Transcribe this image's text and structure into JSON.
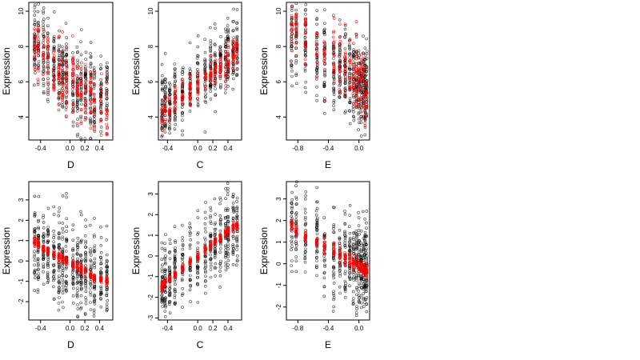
{
  "figure": {
    "point_color": "#000000",
    "highlight_color": "#ff0000"
  },
  "chart_data": [
    {
      "type": "scatter",
      "panel": "top-left",
      "xlabel": "D",
      "ylabel": "Expression",
      "xlim": [
        -0.56,
        0.58
      ],
      "ylim": [
        2.7,
        10.5
      ],
      "xticks": [
        -0.4,
        0.0,
        0.2,
        0.4
      ],
      "xtick_labels": [
        "-0.4",
        "0.0",
        "0.2",
        "0.4"
      ],
      "yticks": [
        4,
        6,
        8,
        10
      ],
      "ytick_labels": [
        "4",
        "6",
        "8",
        "10"
      ],
      "x_columns": [
        -0.48,
        -0.43,
        -0.36,
        -0.3,
        -0.22,
        -0.15,
        -0.1,
        -0.05,
        0.04,
        0.1,
        0.15,
        0.21,
        0.28,
        0.33,
        0.42,
        0.5
      ],
      "trend": {
        "mean": [
          8.1,
          7.8,
          7.5,
          7.4,
          7.0,
          6.6,
          6.4,
          6.3,
          6.1,
          5.8,
          5.7,
          5.5,
          5.3,
          5.2,
          5.1,
          5.0
        ],
        "spread": 1.4
      },
      "highlight": {
        "mean": [
          8.3,
          8.0,
          7.5,
          7.2,
          6.8,
          6.4,
          6.2,
          6.0,
          6.4,
          5.8,
          5.6,
          5.0,
          5.2,
          4.8,
          4.5,
          4.3
        ],
        "spread": 1.1
      }
    },
    {
      "type": "scatter",
      "panel": "top-center",
      "xlabel": "C",
      "ylabel": "Expression",
      "xlim": [
        -0.52,
        0.58
      ],
      "ylim": [
        2.7,
        10.5
      ],
      "xticks": [
        -0.4,
        0.0,
        0.2,
        0.4
      ],
      "xtick_labels": [
        "-0.4",
        "0.0",
        "0.2",
        "0.4"
      ],
      "yticks": [
        4,
        6,
        8,
        10
      ],
      "ytick_labels": [
        "4",
        "6",
        "8",
        "10"
      ],
      "x_columns": [
        -0.47,
        -0.43,
        -0.37,
        -0.3,
        -0.2,
        -0.1,
        0.0,
        0.1,
        0.17,
        0.23,
        0.3,
        0.37,
        0.4,
        0.47,
        0.52
      ],
      "trend": {
        "mean": [
          4.3,
          4.6,
          4.9,
          5.2,
          5.5,
          5.8,
          6.1,
          6.4,
          6.6,
          6.9,
          7.1,
          7.3,
          7.4,
          7.6,
          7.7
        ],
        "spread": 1.2
      },
      "highlight": {
        "mean": [
          4.0,
          4.4,
          4.5,
          5.0,
          5.4,
          5.7,
          5.9,
          6.2,
          6.5,
          6.6,
          6.8,
          7.0,
          7.2,
          7.5,
          7.7
        ],
        "spread": 0.5
      }
    },
    {
      "type": "scatter",
      "panel": "top-right",
      "xlabel": "E",
      "ylabel": "Expression",
      "xlim": [
        -0.95,
        0.14
      ],
      "ylim": [
        2.7,
        10.5
      ],
      "xticks": [
        -0.8,
        -0.4,
        0.0
      ],
      "xtick_labels": [
        "-0.8",
        "-0.4",
        "0.0"
      ],
      "yticks": [
        4,
        6,
        8,
        10
      ],
      "ytick_labels": [
        "4",
        "6",
        "8",
        "10"
      ],
      "x_columns": [
        -0.88,
        -0.82,
        -0.7,
        -0.55,
        -0.45,
        -0.33,
        -0.25,
        -0.18,
        -0.12,
        -0.07,
        -0.03,
        0.0,
        0.03,
        0.06,
        0.08,
        0.1
      ],
      "trend": {
        "mean": [
          8.8,
          8.5,
          8.0,
          7.5,
          7.1,
          6.9,
          6.7,
          6.5,
          6.3,
          6.2,
          6.0,
          5.9,
          5.8,
          5.7,
          5.6,
          5.6
        ],
        "spread": 1.5
      },
      "highlight": {
        "mean": [
          9.2,
          8.9,
          8.4,
          8.0,
          7.6,
          7.4,
          7.0,
          6.8,
          6.5,
          6.3,
          6.1,
          6.0,
          6.0,
          5.8,
          5.5,
          5.2
        ],
        "spread": 1.3
      }
    },
    {
      "type": "scatter",
      "panel": "bottom-left",
      "xlabel": "D",
      "ylabel": "Expression",
      "xlim": [
        -0.56,
        0.58
      ],
      "ylim": [
        -2.9,
        3.9
      ],
      "xticks": [
        -0.4,
        0.0,
        0.2,
        0.4
      ],
      "xtick_labels": [
        "-0.4",
        "0.0",
        "0.2",
        "0.4"
      ],
      "yticks": [
        -2,
        -1,
        0,
        1,
        2,
        3
      ],
      "ytick_labels": [
        "-2",
        "-1",
        "0",
        "1",
        "2",
        "3"
      ],
      "x_columns": [
        -0.48,
        -0.43,
        -0.36,
        -0.3,
        -0.22,
        -0.15,
        -0.1,
        -0.05,
        0.04,
        0.1,
        0.15,
        0.21,
        0.28,
        0.33,
        0.42,
        0.5
      ],
      "trend": {
        "mean": [
          1.0,
          0.8,
          0.6,
          0.5,
          0.3,
          0.2,
          0.1,
          0.0,
          -0.2,
          -0.3,
          -0.4,
          -0.5,
          -0.7,
          -0.8,
          -0.9,
          -1.0
        ],
        "spread": 1.3
      },
      "highlight": {
        "mean": [
          1.0,
          0.8,
          0.6,
          0.5,
          0.3,
          0.2,
          0.1,
          0.0,
          -0.2,
          -0.3,
          -0.4,
          -0.5,
          -0.7,
          -0.8,
          -0.9,
          -1.0
        ],
        "spread": 0.12
      }
    },
    {
      "type": "scatter",
      "panel": "bottom-center",
      "xlabel": "C",
      "ylabel": "Expression",
      "xlim": [
        -0.52,
        0.58
      ],
      "ylim": [
        -3.1,
        3.6
      ],
      "xticks": [
        -0.4,
        0.0,
        0.2,
        0.4
      ],
      "xtick_labels": [
        "-0.4",
        "0.0",
        "0.2",
        "0.4"
      ],
      "yticks": [
        -3,
        -2,
        -1,
        0,
        1,
        2,
        3
      ],
      "ytick_labels": [
        "-3",
        "-2",
        "-1",
        "0",
        "1",
        "2",
        "3"
      ],
      "x_columns": [
        -0.47,
        -0.43,
        -0.37,
        -0.3,
        -0.2,
        -0.1,
        0.0,
        0.1,
        0.17,
        0.23,
        0.3,
        0.37,
        0.4,
        0.47,
        0.52
      ],
      "trend": {
        "mean": [
          -1.5,
          -1.3,
          -1.1,
          -0.9,
          -0.6,
          -0.3,
          0.0,
          0.3,
          0.5,
          0.7,
          0.9,
          1.1,
          1.2,
          1.4,
          1.5
        ],
        "spread": 1.2
      },
      "highlight": {
        "mean": [
          -1.5,
          -1.3,
          -1.1,
          -0.9,
          -0.6,
          -0.3,
          0.0,
          0.3,
          0.5,
          0.7,
          0.9,
          1.1,
          1.2,
          1.4,
          1.5
        ],
        "spread": 0.12
      }
    },
    {
      "type": "scatter",
      "panel": "bottom-right",
      "xlabel": "E",
      "ylabel": "Expression",
      "xlim": [
        -0.95,
        0.14
      ],
      "ylim": [
        -2.6,
        3.8
      ],
      "xticks": [
        -0.8,
        -0.4,
        0.0
      ],
      "xtick_labels": [
        "-0.8",
        "-0.4",
        "0.0"
      ],
      "yticks": [
        -2,
        -1,
        0,
        1,
        2,
        3
      ],
      "ytick_labels": [
        "-2",
        "-1",
        "0",
        "1",
        "2",
        "3"
      ],
      "x_columns": [
        -0.88,
        -0.82,
        -0.7,
        -0.55,
        -0.45,
        -0.33,
        -0.25,
        -0.18,
        -0.12,
        -0.07,
        -0.03,
        0.0,
        0.03,
        0.06,
        0.08,
        0.1
      ],
      "trend": {
        "mean": [
          1.8,
          1.5,
          1.2,
          1.0,
          0.8,
          0.5,
          0.4,
          0.3,
          0.2,
          0.1,
          0.0,
          -0.1,
          -0.1,
          -0.2,
          -0.2,
          -0.3
        ],
        "spread": 1.3
      },
      "highlight": {
        "mean": [
          1.8,
          1.5,
          1.3,
          1.0,
          0.8,
          0.6,
          0.4,
          0.3,
          0.2,
          0.1,
          0.0,
          -0.1,
          -0.1,
          -0.2,
          -0.2,
          -0.3
        ],
        "spread": 0.2
      }
    }
  ]
}
